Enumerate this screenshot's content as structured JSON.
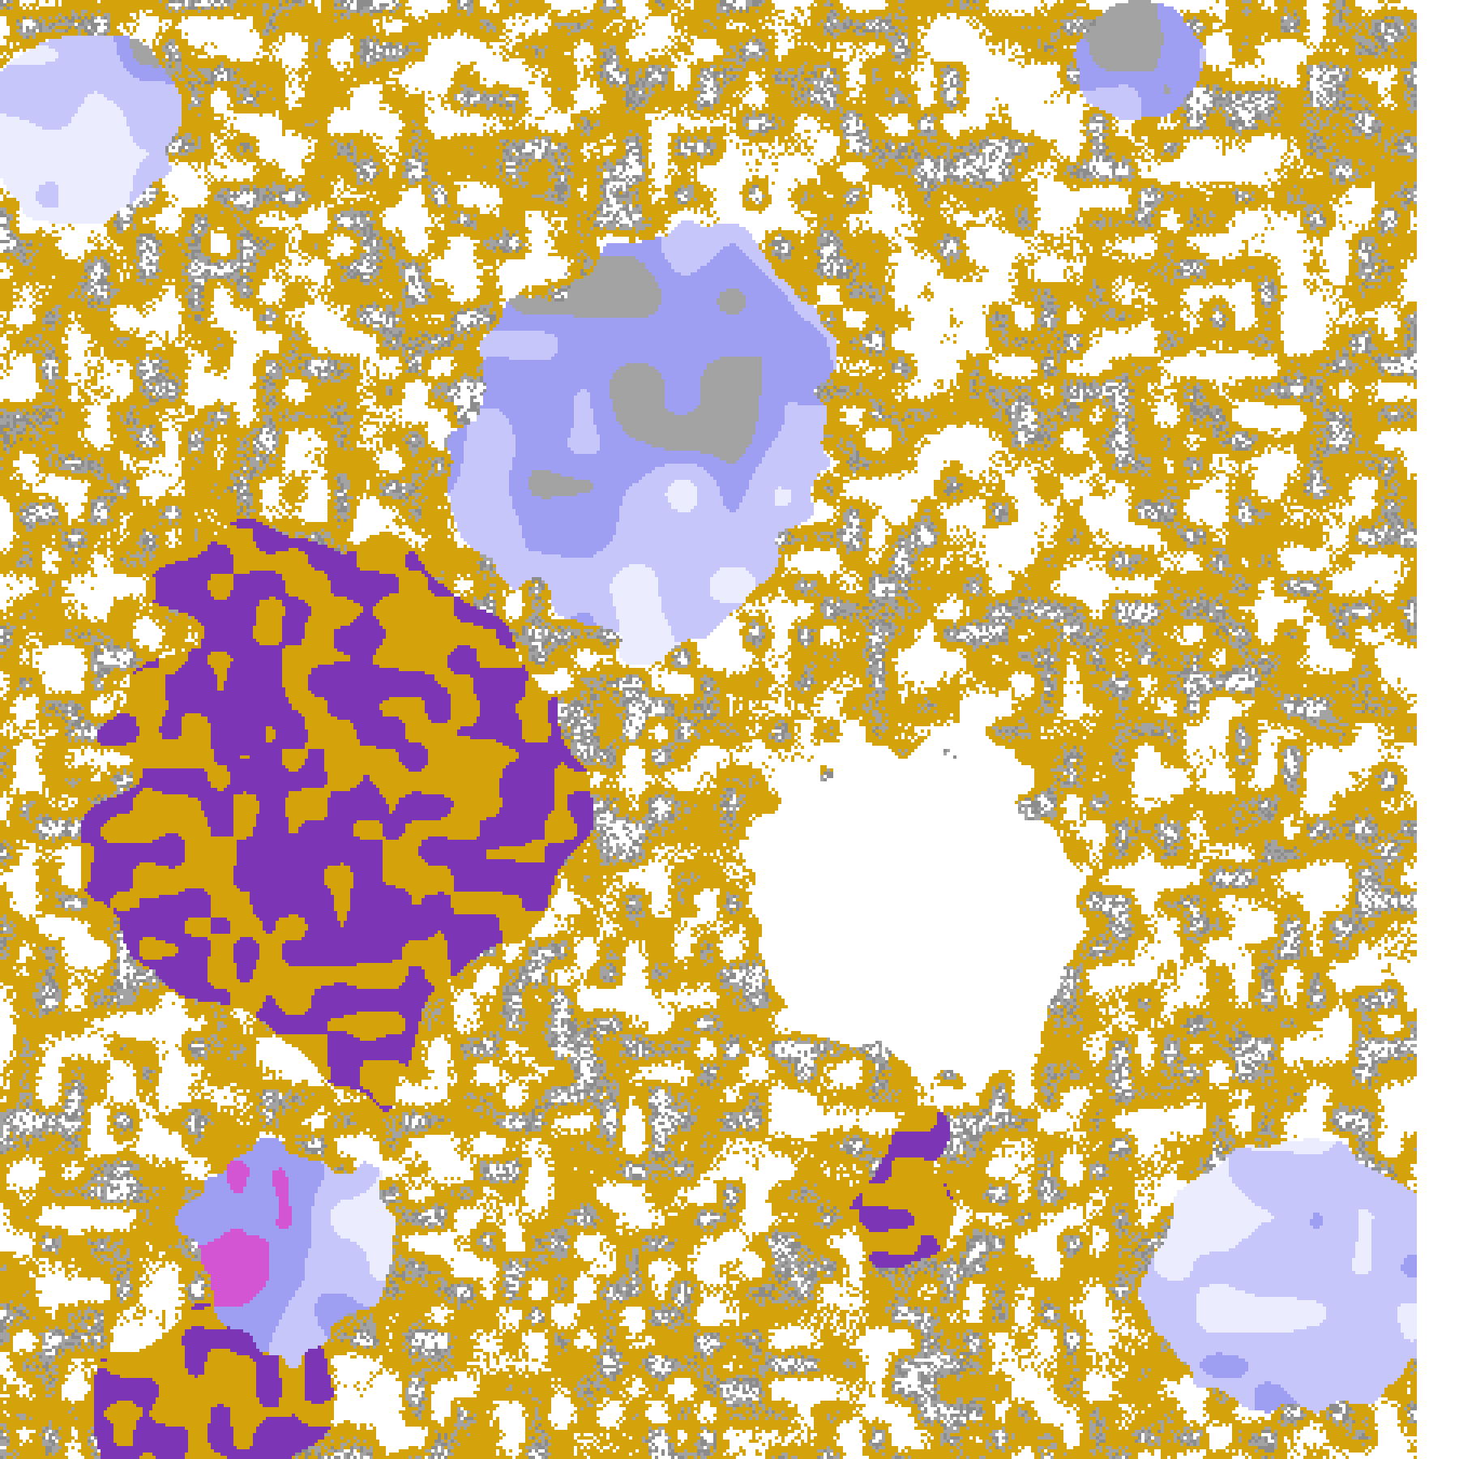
{
  "image": {
    "kind": "satellite cloud-type classification map",
    "palette": {
      "clear": "#ffffff",
      "low_cloud_gold": "#d4a20a",
      "deep_purple": "#7b35b5",
      "gray_cloud": "#a3a3a3",
      "dark_gray_cloud": "#8c8c8c",
      "lavender": "#c6c6fb",
      "pale_lavender": "#ececff",
      "periwinkle": "#9e9ef2",
      "magenta": "#d455d4"
    }
  }
}
